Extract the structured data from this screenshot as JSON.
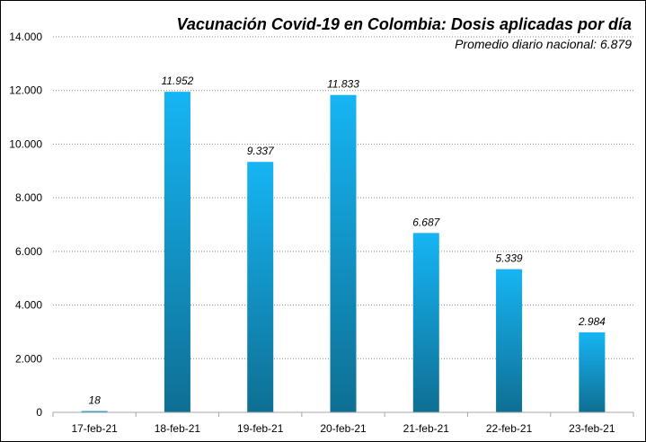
{
  "chart_data": {
    "type": "bar",
    "title": "Vacunación Covid-19 en Colombia: Dosis aplicadas por día",
    "subtitle": "Promedio diario nacional: 6.879",
    "categories": [
      "17-feb-21",
      "18-feb-21",
      "19-feb-21",
      "20-feb-21",
      "21-feb-21",
      "22-feb-21",
      "23-feb-21"
    ],
    "values": [
      18,
      11952,
      9337,
      11833,
      6687,
      5339,
      2984
    ],
    "data_labels": [
      "18",
      "11.952",
      "9.337",
      "11.833",
      "6.687",
      "5.339",
      "2.984"
    ],
    "y_ticks": [
      0,
      2000,
      4000,
      6000,
      8000,
      10000,
      12000,
      14000
    ],
    "y_tick_labels": [
      "0",
      "2.000",
      "4.000",
      "6.000",
      "8.000",
      "10.000",
      "12.000",
      "14.000"
    ],
    "ylim": [
      0,
      14000
    ],
    "grid": "horizontal dotted",
    "legend": "none",
    "colors": {
      "bar_light": "#16b5f4",
      "bar_dark": "#0e6f93",
      "grid": "#888888",
      "axis": "#a6a6a6"
    }
  }
}
